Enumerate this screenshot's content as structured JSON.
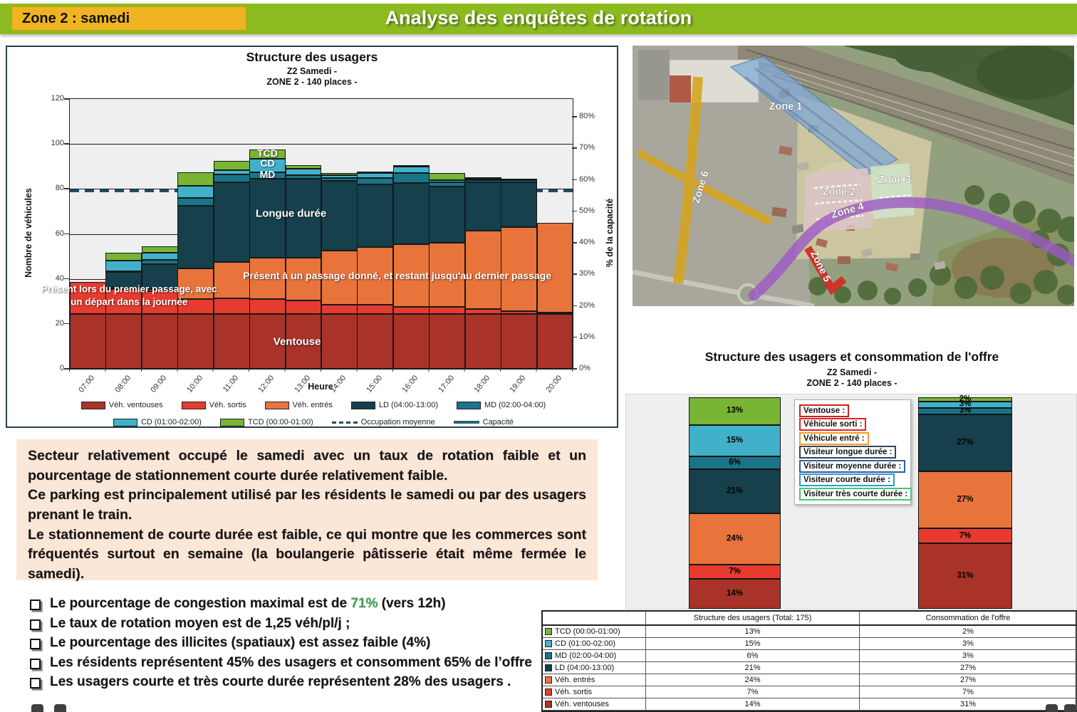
{
  "header": {
    "zone_label": "Zone 2 : samedi",
    "title": "Analyse des enquêtes de rotation"
  },
  "accent_green": "#3FA24C",
  "chart_data": [
    {
      "type": "bar",
      "stacked": true,
      "title": "Structure des usagers",
      "subtitle1": "Z2 Samedi -",
      "subtitle2": "ZONE 2  - 140 places -",
      "xlabel": "Heure",
      "ylabel_left": "Nombre de véhicules",
      "ylabel_right": "% de la capacité",
      "ylim_left": [
        0,
        120
      ],
      "ytick_step_left": 20,
      "ylim_right_pct": [
        0,
        80
      ],
      "ytick_step_right_pct": 10,
      "capacite": 140,
      "occupation_moyenne": 79,
      "grid": true,
      "legend_position": "bottom",
      "categories": [
        "07:00",
        "08:00",
        "09:00",
        "10:00",
        "11:00",
        "12:00",
        "13:00",
        "14:00",
        "15:00",
        "16:00",
        "17:00",
        "18:00",
        "19:00",
        "20:00"
      ],
      "series": [
        {
          "name": "Véh. ventouses",
          "color": "#A93328",
          "values": [
            24.5,
            24.5,
            24.5,
            24.5,
            24.5,
            24.5,
            24.5,
            24.5,
            24.5,
            24.5,
            24.5,
            24.5,
            24.5,
            24.5
          ]
        },
        {
          "name": "Véh. sortis",
          "color": "#E73B30",
          "values": [
            14,
            11,
            10,
            6.5,
            7,
            6.5,
            6,
            4,
            4,
            3,
            3,
            2,
            1,
            0.5
          ]
        },
        {
          "name": "Véh. entrés",
          "color": "#E8743C",
          "values": [
            0,
            0.5,
            1,
            13.5,
            16,
            18.5,
            19,
            24,
            25.5,
            28,
            28.5,
            35,
            37.5,
            40
          ]
        },
        {
          "name": "LD (04:00-13:00)",
          "color": "#15404C",
          "values": [
            0,
            7,
            11,
            28,
            35.5,
            35,
            35,
            31,
            28,
            27,
            25,
            21.5,
            20,
            0
          ]
        },
        {
          "name": "MD (02:00-04:00)",
          "color": "#1A7488",
          "values": [
            0,
            0.5,
            2,
            3.5,
            3.5,
            3,
            1.5,
            1.5,
            3,
            4.5,
            2,
            1,
            1,
            0
          ]
        },
        {
          "name": "CD (01:00-02:00)",
          "color": "#41B1C9",
          "values": [
            0,
            4.5,
            3,
            5.5,
            2,
            6,
            3,
            1,
            2,
            3,
            1,
            0.5,
            0,
            0
          ]
        },
        {
          "name": "TCD (00:00-01:00)",
          "color": "#77B533",
          "values": [
            0,
            3.5,
            3,
            6,
            4,
            4,
            1.5,
            1,
            0.5,
            0.5,
            3,
            0.5,
            0.5,
            0
          ]
        }
      ],
      "legend": [
        {
          "label": "Véh. ventouses",
          "type": "fill",
          "color": "#A93328"
        },
        {
          "label": "Véh. sortis",
          "type": "fill",
          "color": "#E73B30"
        },
        {
          "label": "Véh. entrés",
          "type": "fill",
          "color": "#E8743C"
        },
        {
          "label": "LD (04:00-13:00)",
          "type": "fill",
          "color": "#15404C"
        },
        {
          "label": "MD (02:00-04:00)",
          "type": "fill",
          "color": "#1A7488"
        },
        {
          "label": "CD (01:00-02:00)",
          "type": "fill",
          "color": "#41B1C9"
        },
        {
          "label": "TCD (00:00-01:00)",
          "type": "fill",
          "color": "#77B533"
        },
        {
          "label": "Occupation moyenne",
          "type": "dash",
          "color": "#1F4E5F"
        },
        {
          "label": "Capacité",
          "type": "line",
          "color": "#2E5F6E"
        }
      ],
      "annotations": [
        {
          "x": 0.393,
          "y": 96,
          "size": 14,
          "text": "TCD"
        },
        {
          "x": 0.393,
          "y": 91.5,
          "size": 14,
          "text": "CD"
        },
        {
          "x": 0.393,
          "y": 86.5,
          "size": 14,
          "text": "MD"
        },
        {
          "x": 0.44,
          "y": 69,
          "size": 15,
          "text": "Longue durée"
        },
        {
          "x": 0.651,
          "y": 41.5,
          "size": 14,
          "text": "Présent à un passage donné, et restant jusqu'au dernier passage"
        },
        {
          "x": 0.118,
          "y": 32.5,
          "size": 13.5,
          "text": "Présent lors du premier passage, avec\nun départ dans la journée"
        },
        {
          "x": 0.452,
          "y": 12,
          "size": 15,
          "text": "Ventouse"
        }
      ]
    },
    {
      "type": "bar",
      "stacked": true,
      "unit": "%",
      "title": "Structure des usagers et consommation de l'offre",
      "subtitle1": "Z2 Samedi -",
      "subtitle2": "ZONE 2 - 140 places -",
      "categories": [
        "Structure des usagers (Total: 175)",
        "Consommation de l'offre"
      ],
      "series": [
        {
          "name": "Véh. ventouses",
          "color": "#A93328",
          "values": [
            14,
            31
          ]
        },
        {
          "name": "Véh. sortis",
          "color": "#E73B30",
          "values": [
            7,
            7
          ]
        },
        {
          "name": "Véh. entrés",
          "color": "#E8743C",
          "values": [
            24,
            27
          ]
        },
        {
          "name": "LD (04:00-13:00)",
          "color": "#15404C",
          "values": [
            21,
            27
          ]
        },
        {
          "name": "MD (02:00-04:00)",
          "color": "#1A7488",
          "values": [
            6,
            3
          ]
        },
        {
          "name": "CD (01:00-02:00)",
          "color": "#41B1C9",
          "values": [
            15,
            3
          ]
        },
        {
          "name": "TCD (00:00-01:00)",
          "color": "#77B533",
          "values": [
            13,
            2
          ]
        }
      ],
      "legend_boxes": [
        {
          "label": "Ventouse :",
          "color": "#D02020"
        },
        {
          "label": "Véhicule sorti :",
          "color": "#E32222"
        },
        {
          "label": "Véhicule entré :",
          "color": "#F29D1F"
        },
        {
          "label": "Visiteur longue durée :",
          "color": "#32465A"
        },
        {
          "label": "Visiteur moyenne durée :",
          "color": "#2F5F9C"
        },
        {
          "label": "Visiteur courte durée :",
          "color": "#2E9AD8"
        },
        {
          "label": "Visiteur très courte durée :",
          "color": "#3ECC6C"
        }
      ]
    }
  ],
  "offer_table": {
    "headers": [
      "",
      "Structure des usagers (Total: 175)",
      "Consommation de l'offre"
    ],
    "rows": [
      {
        "label": "TCD (00:00-01:00)",
        "swatch": "#77B533",
        "structure": "13%",
        "consommation": "2%"
      },
      {
        "label": "CD (01:00-02:00)",
        "swatch": "#41B1C9",
        "structure": "15%",
        "consommation": "3%"
      },
      {
        "label": "MD (02:00-04:00)",
        "swatch": "#1A7488",
        "structure": "6%",
        "consommation": "3%"
      },
      {
        "label": "LD (04:00-13:00)",
        "swatch": "#15404C",
        "structure": "21%",
        "consommation": "27%"
      },
      {
        "label": "Véh. entrés",
        "swatch": "#E8743C",
        "structure": "24%",
        "consommation": "27%"
      },
      {
        "label": "Véh. sortis",
        "swatch": "#E73B30",
        "structure": "7%",
        "consommation": "7%"
      },
      {
        "label": "Véh. ventouses",
        "swatch": "#A93328",
        "structure": "14%",
        "consommation": "31%"
      }
    ]
  },
  "map": {
    "zones": [
      {
        "label": "Zone 1",
        "color": "#7FA9D9"
      },
      {
        "label": "Zone 2",
        "color": "#D8C3C4"
      },
      {
        "label": "Zone 3",
        "color": "#CFE2C8"
      },
      {
        "label": "Zone 4",
        "color": "#9C59C4"
      },
      {
        "label": "Zone 5",
        "color": "#D42A22"
      },
      {
        "label": "Zone 6",
        "color": "#D6A41D"
      }
    ]
  },
  "analysis": {
    "p1": "Secteur relativement occupé le samedi avec un taux de rotation faible et un pourcentage de stationnement courte durée relativement faible.",
    "p2": "Ce parking est principalement utilisé par les résidents le samedi ou par des usagers prenant le train.",
    "p3": "Le stationnement de courte durée est faible, ce qui montre que les commerces sont fréquentés surtout en semaine (la boulangerie pâtisserie était même fermée le samedi)."
  },
  "bullets": [
    [
      {
        "t": "Le pourcentage de congestion maximal est de "
      },
      {
        "t": "71%",
        "accent": true
      },
      {
        "t": " (vers 12h)"
      }
    ],
    [
      {
        "t": "Le taux de rotation moyen est de 1,25 véh/pl/j ;"
      }
    ],
    [
      {
        "t": "Le pourcentage des illicites (spatiaux) est assez faible (4%)"
      }
    ],
    [
      {
        "t": "Les résidents représentent 45% des usagers et consomment 65% de l’offre"
      }
    ],
    [
      {
        "t": "Les usagers courte et très courte durée représentent 28% des usagers ."
      }
    ]
  ]
}
